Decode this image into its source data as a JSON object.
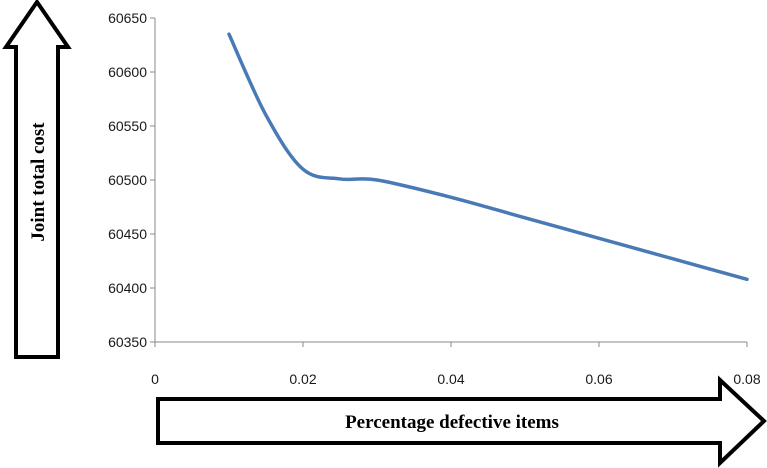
{
  "chart_data": {
    "type": "line",
    "title": "",
    "xlabel": "Percentage defective items",
    "ylabel": "Joint total cost",
    "xlim": [
      0,
      0.08
    ],
    "ylim": [
      60350,
      60650
    ],
    "x_ticks": [
      "0",
      "0.02",
      "0.04",
      "0.06",
      "0.08"
    ],
    "y_ticks": [
      "60350",
      "60400",
      "60450",
      "60500",
      "60550",
      "60600",
      "60650"
    ],
    "grid": false,
    "legend": "none",
    "series": [
      {
        "color": "#4a7ab5",
        "x": [
          0.01,
          0.015,
          0.02,
          0.025,
          0.03,
          0.04,
          0.05,
          0.06,
          0.07,
          0.08
        ],
        "y": [
          60635,
          60560,
          60510,
          60501,
          60500,
          60484,
          60465,
          60446,
          60427,
          60408
        ]
      }
    ]
  }
}
